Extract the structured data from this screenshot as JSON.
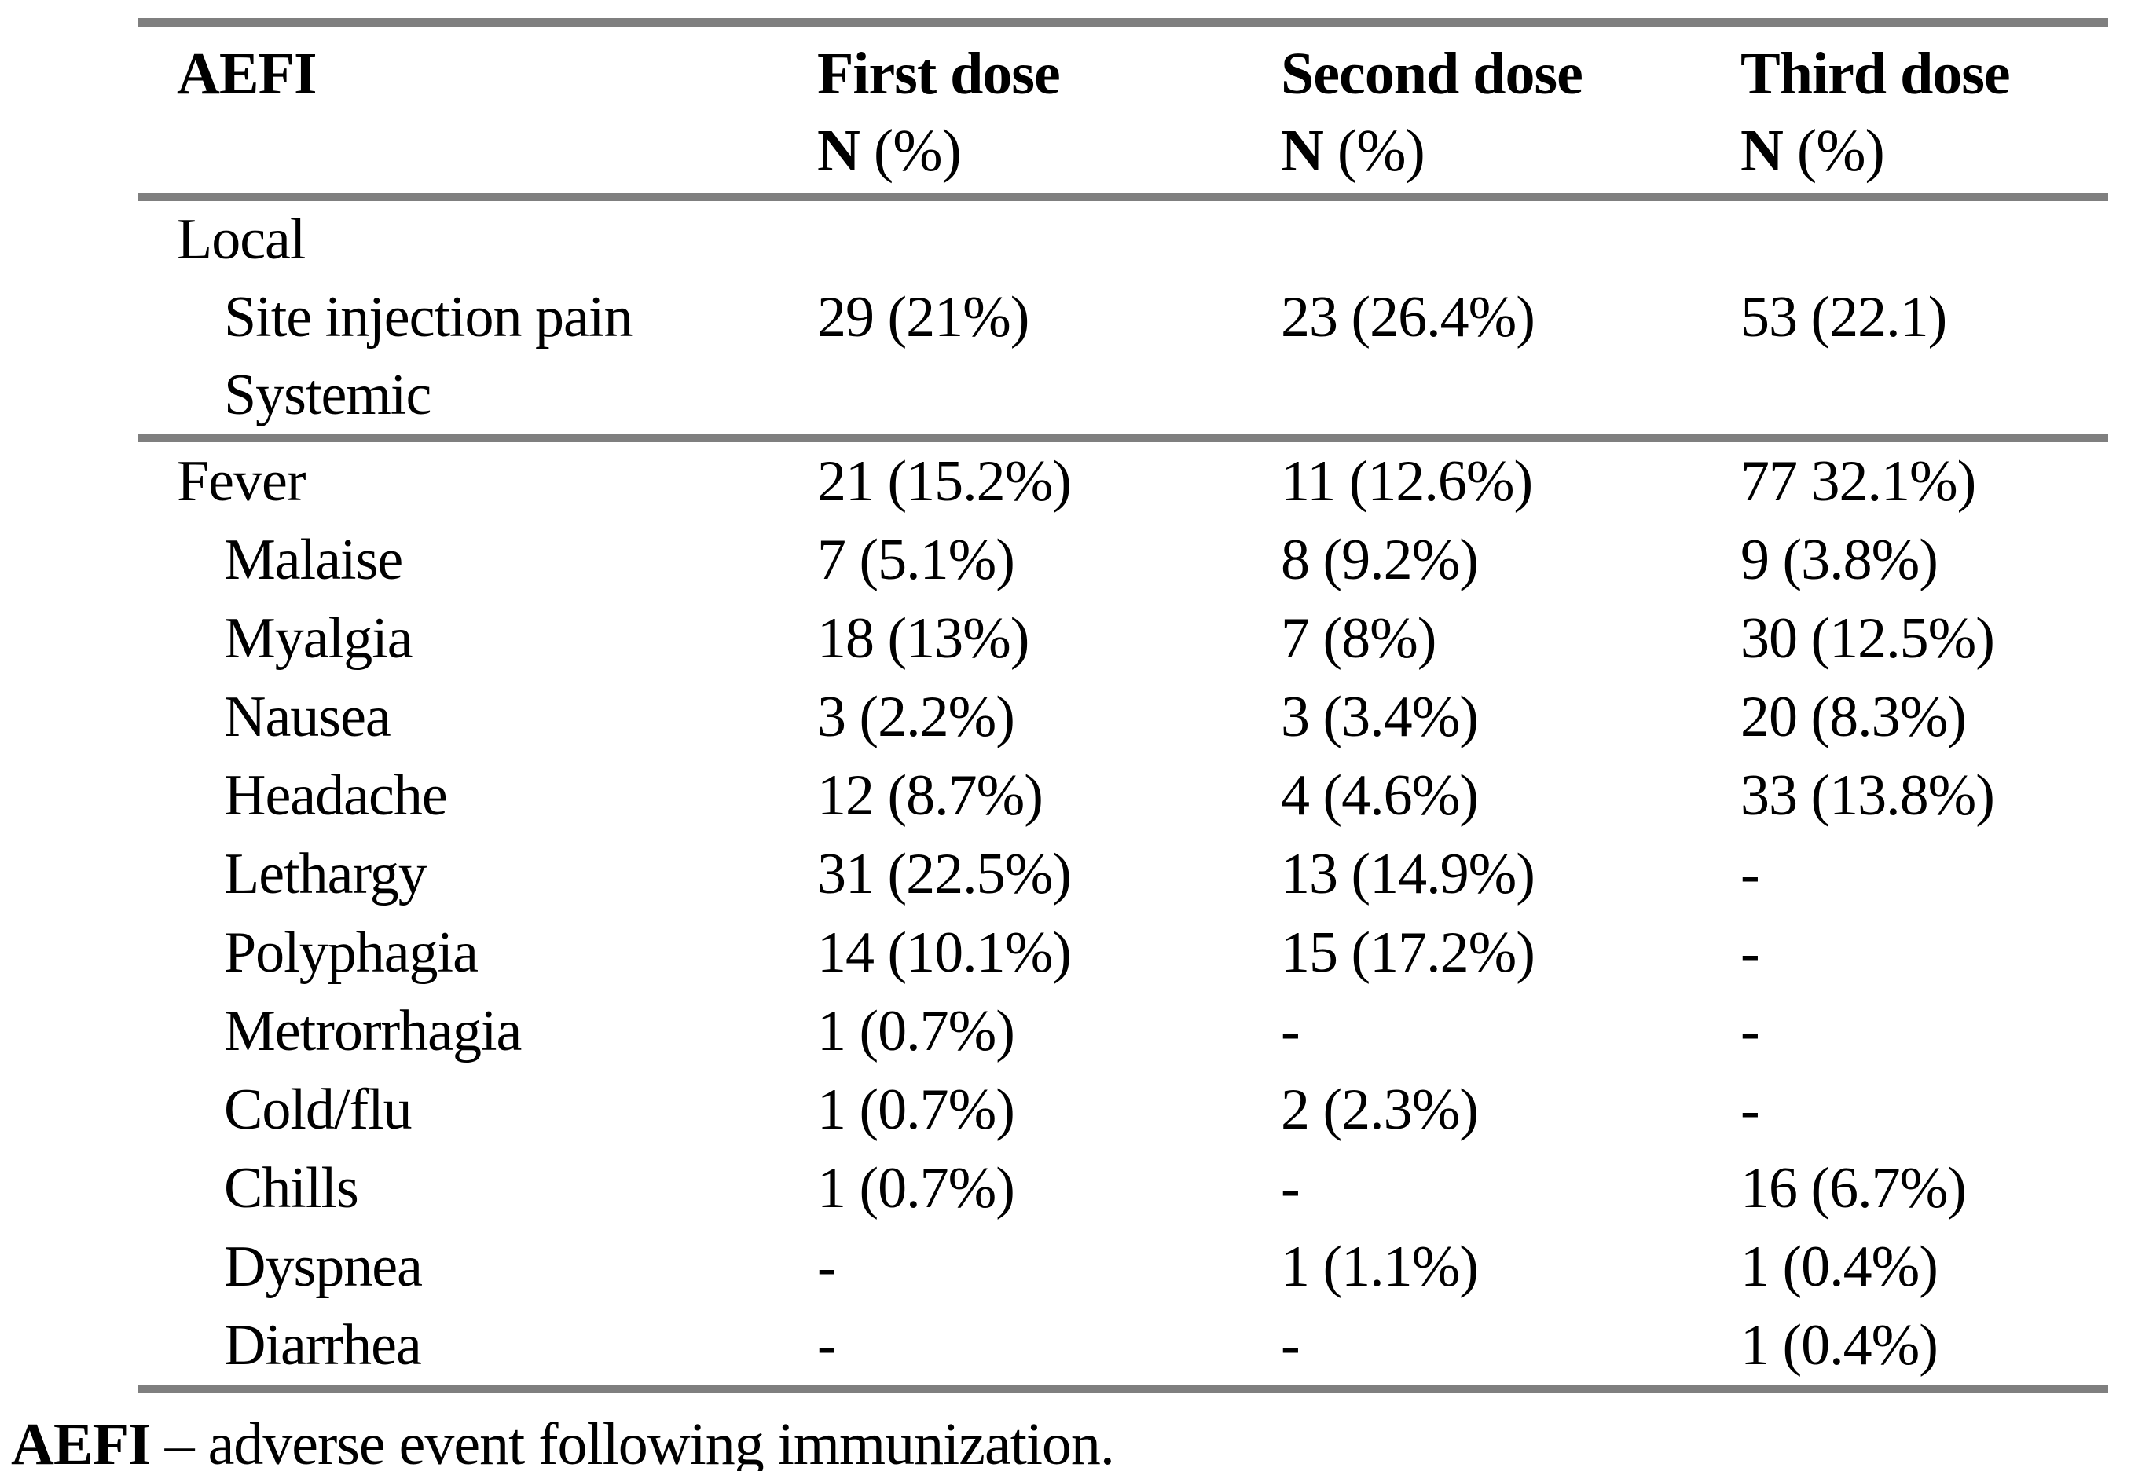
{
  "table": {
    "header": {
      "col_label": "AEFI",
      "dose_columns": [
        {
          "title": "First dose",
          "sub_bold": "N",
          "sub_rest": " (%)"
        },
        {
          "title": "Second dose",
          "sub_bold": "N",
          "sub_rest": " (%)"
        },
        {
          "title": "Third dose",
          "sub_bold": "N",
          "sub_rest": " (%)"
        }
      ]
    },
    "section_local": {
      "rows": [
        {
          "label": "Local",
          "indent": false,
          "first": "",
          "second": "",
          "third": ""
        },
        {
          "label": "Site injection pain",
          "indent": true,
          "first": "29 (21%)",
          "second": "23 (26.4%)",
          "third": "53 (22.1)"
        },
        {
          "label": "Systemic",
          "indent": true,
          "first": "",
          "second": "",
          "third": ""
        }
      ]
    },
    "section_systemic": {
      "rows": [
        {
          "label": "Fever",
          "indent": false,
          "first": "21 (15.2%)",
          "second": "11 (12.6%)",
          "third": "77 32.1%)"
        },
        {
          "label": "Malaise",
          "indent": true,
          "first": "7 (5.1%)",
          "second": "8 (9.2%)",
          "third": "9 (3.8%)"
        },
        {
          "label": "Myalgia",
          "indent": true,
          "first": "18 (13%)",
          "second": "7 (8%)",
          "third": "30 (12.5%)"
        },
        {
          "label": "Nausea",
          "indent": true,
          "first": "3 (2.2%)",
          "second": "3 (3.4%)",
          "third": "20 (8.3%)"
        },
        {
          "label": "Headache",
          "indent": true,
          "first": "12 (8.7%)",
          "second": "4 (4.6%)",
          "third": "33 (13.8%)"
        },
        {
          "label": "Lethargy",
          "indent": true,
          "first": "31 (22.5%)",
          "second": "13 (14.9%)",
          "third": "-"
        },
        {
          "label": "Polyphagia",
          "indent": true,
          "first": "14 (10.1%)",
          "second": "15 (17.2%)",
          "third": "-"
        },
        {
          "label": "Metrorrhagia",
          "indent": true,
          "first": "1 (0.7%)",
          "second": "-",
          "third": "-"
        },
        {
          "label": "Cold/flu",
          "indent": true,
          "first": "1 (0.7%)",
          "second": "2 (2.3%)",
          "third": "-"
        },
        {
          "label": "Chills",
          "indent": true,
          "first": "1 (0.7%)",
          "second": "-",
          "third": "16 (6.7%)"
        },
        {
          "label": "Dyspnea",
          "indent": true,
          "first": "-",
          "second": "1 (1.1%)",
          "third": "1 (0.4%)"
        },
        {
          "label": "Diarrhea",
          "indent": true,
          "first": "-",
          "second": "-",
          "third": "1 (0.4%)"
        }
      ]
    }
  },
  "footnote": {
    "abbr": "AEFI",
    "text": " – adverse event following immunization."
  },
  "colors": {
    "rule_gray": "#7f7f7f",
    "text": "#000000",
    "background": "#ffffff"
  }
}
